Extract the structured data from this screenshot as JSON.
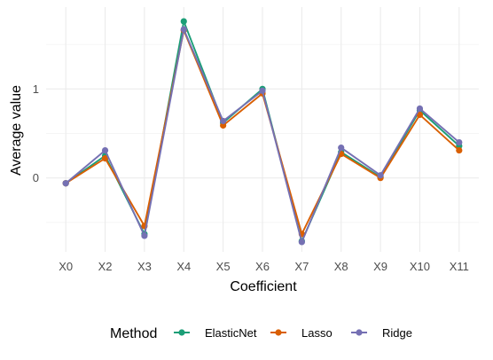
{
  "chart_data": {
    "type": "line",
    "xlabel": "Coefficient",
    "ylabel": "Average value",
    "categories": [
      "X0",
      "X2",
      "X3",
      "X4",
      "X5",
      "X6",
      "X7",
      "X8",
      "X9",
      "X10",
      "X11"
    ],
    "yticks": [
      0,
      1
    ],
    "ytick_labels": [
      "0",
      "1"
    ],
    "ylim": [
      -0.83,
      1.92
    ],
    "grid": true,
    "legend": {
      "title": "Method",
      "position": "bottom"
    },
    "series": [
      {
        "name": "ElasticNet",
        "color": "#1b9e77",
        "values": [
          -0.06,
          0.25,
          -0.63,
          1.76,
          0.62,
          1.0,
          -0.71,
          0.29,
          0.01,
          0.76,
          0.36
        ]
      },
      {
        "name": "Lasso",
        "color": "#d95f02",
        "values": [
          -0.06,
          0.22,
          -0.54,
          1.66,
          0.59,
          0.95,
          -0.63,
          0.27,
          0.0,
          0.71,
          0.31
        ]
      },
      {
        "name": "Ridge",
        "color": "#7570b3",
        "values": [
          -0.06,
          0.31,
          -0.65,
          1.67,
          0.64,
          0.98,
          -0.72,
          0.34,
          0.03,
          0.78,
          0.4
        ]
      }
    ]
  }
}
